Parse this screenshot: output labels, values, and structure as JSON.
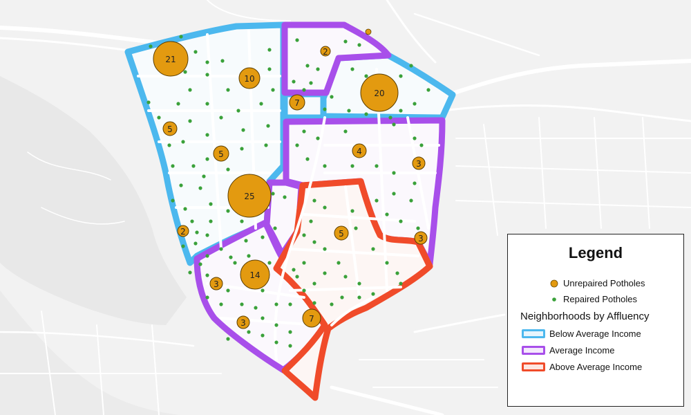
{
  "colors": {
    "below_average": "#4cb8ee",
    "average": "#a84fea",
    "above_average": "#f04b2a",
    "unrepaired": "#e39a10",
    "repaired": "#3aa13a",
    "map_background": "#f2f2f2",
    "roads": "#ffffff"
  },
  "legend": {
    "title": "Legend",
    "points": [
      {
        "label": "Unrepaired Potholes",
        "symbol": "orange-dot-icon"
      },
      {
        "label": "Repaired Potholes",
        "symbol": "green-dot-icon"
      }
    ],
    "section_title": "Neighborhoods by Affluency",
    "categories": [
      {
        "label": "Below Average Income",
        "color": "#4cb8ee"
      },
      {
        "label": "Average Income",
        "color": "#a84fea"
      },
      {
        "label": "Above Average Income",
        "color": "#f04b2a"
      }
    ]
  },
  "unrepaired_clusters": [
    {
      "count": "21"
    },
    {
      "count": "10"
    },
    {
      "count": "2"
    },
    {
      "count": "7"
    },
    {
      "count": "20"
    },
    {
      "count": "5"
    },
    {
      "count": "5"
    },
    {
      "count": "4"
    },
    {
      "count": "3"
    },
    {
      "count": "25"
    },
    {
      "count": "2"
    },
    {
      "count": "5"
    },
    {
      "count": "3"
    },
    {
      "count": "14"
    },
    {
      "count": "3"
    },
    {
      "count": "3"
    },
    {
      "count": "7"
    }
  ]
}
